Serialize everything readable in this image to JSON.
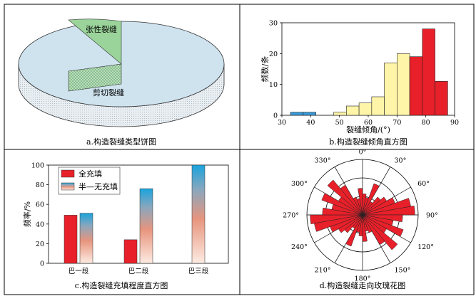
{
  "chart_data": [
    {
      "type": "pie",
      "caption": "a.构造裂缝类型饼图",
      "slices": [
        {
          "label": "张性裂缝",
          "value": 8,
          "color": "#9bd49b"
        },
        {
          "label": "剪切裂缝",
          "value": 92,
          "color": "#cfe3ef"
        }
      ]
    },
    {
      "type": "bar",
      "caption": "b.构造裂缝倾角直方图",
      "xlabel": "裂缝倾角/(°)",
      "ylabel": "频数/条",
      "xlim": [
        30,
        90
      ],
      "ylim": [
        0,
        30
      ],
      "xticks": [
        30,
        40,
        50,
        60,
        70,
        80,
        90
      ],
      "yticks": [
        0,
        10,
        20,
        30
      ],
      "bin_width": 4.4,
      "bars": [
        {
          "x": 33,
          "value": 1,
          "color": "#3a9ad9"
        },
        {
          "x": 37.4,
          "value": 1,
          "color": "#3a9ad9"
        },
        {
          "x": 48,
          "value": 1,
          "color": "#fff5a8"
        },
        {
          "x": 52.4,
          "value": 3,
          "color": "#fff5a8"
        },
        {
          "x": 56.8,
          "value": 4,
          "color": "#fff5a8"
        },
        {
          "x": 61.2,
          "value": 6,
          "color": "#fff5a8"
        },
        {
          "x": 65.6,
          "value": 17,
          "color": "#fff5a8"
        },
        {
          "x": 70,
          "value": 20,
          "color": "#fff5a8"
        },
        {
          "x": 74.4,
          "value": 19,
          "color": "#e8202a"
        },
        {
          "x": 78.8,
          "value": 28,
          "color": "#e8202a"
        },
        {
          "x": 83.2,
          "value": 11,
          "color": "#e8202a"
        }
      ]
    },
    {
      "type": "bar",
      "caption": "c.构造裂缝充填程度直方图",
      "ylabel": "频率/%",
      "ylim": [
        0,
        100
      ],
      "yticks": [
        0,
        20,
        40,
        60,
        80,
        100
      ],
      "categories": [
        "巴一段",
        "巴二段",
        "巴三段"
      ],
      "series": [
        {
          "name": "全充填",
          "values": [
            49,
            24,
            0
          ],
          "color": "#e8202a"
        },
        {
          "name": "半—无充填",
          "values": [
            51,
            76,
            100
          ],
          "gradient": [
            "#fde6de",
            "#1aa3dd"
          ]
        }
      ]
    },
    {
      "type": "rose",
      "caption": "d.构造裂缝走向玫瑰花图",
      "angle_labels": [
        "0°",
        "30°",
        "60°",
        "90°",
        "120°",
        "150°",
        "180°",
        "210°",
        "240°",
        "270°",
        "300°",
        "330°"
      ],
      "bin_deg": 10,
      "petals": [
        0.38,
        0.32,
        0.6,
        0.28,
        0.42,
        0.5,
        0.62,
        0.88,
        0.94,
        0.72,
        0.56,
        0.78,
        0.5,
        0.82,
        0.62,
        0.34,
        0.3,
        0.48
      ],
      "fill": "#e8202a"
    }
  ]
}
